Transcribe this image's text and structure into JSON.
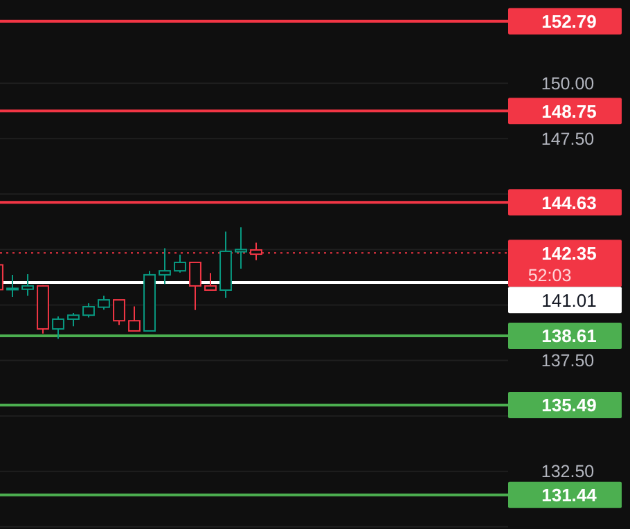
{
  "chart_data": {
    "type": "candlestick",
    "relative": false,
    "categories": [
      null,
      null,
      null,
      null,
      null,
      null,
      null,
      null,
      null,
      null,
      null,
      null,
      null,
      null,
      null,
      null,
      null,
      null,
      null,
      null,
      null,
      null,
      null,
      null,
      null,
      null,
      null,
      null,
      null,
      null,
      null,
      null,
      null,
      null
    ],
    "ohlc": [
      [
        141.81,
        141.81,
        140.69,
        140.69
      ],
      [
        140.7,
        141.36,
        140.36,
        140.75
      ],
      [
        140.71,
        141.39,
        140.42,
        140.86
      ],
      [
        140.86,
        140.9,
        138.71,
        138.92
      ],
      [
        138.92,
        139.48,
        138.48,
        139.36
      ],
      [
        139.36,
        139.64,
        139.04,
        139.54
      ],
      [
        139.54,
        140.08,
        139.44,
        139.92
      ],
      [
        139.9,
        140.42,
        139.79,
        140.23
      ],
      [
        140.23,
        140.23,
        139.1,
        139.29
      ],
      [
        139.29,
        139.94,
        138.83,
        138.83
      ],
      [
        138.83,
        141.54,
        138.83,
        141.36
      ],
      [
        141.36,
        142.56,
        140.94,
        141.54
      ],
      [
        141.54,
        142.27,
        141.46,
        141.92
      ],
      [
        141.92,
        141.92,
        139.77,
        140.86
      ],
      [
        140.86,
        141.44,
        140.67,
        140.67
      ],
      [
        140.67,
        143.31,
        140.33,
        142.42
      ],
      [
        142.4,
        143.5,
        141.64,
        142.5
      ],
      [
        142.48,
        142.81,
        142.02,
        142.29
      ],
      null,
      null,
      null,
      null,
      null,
      null,
      null,
      null,
      null,
      null,
      null,
      null,
      null,
      null,
      null,
      null
    ],
    "colors": [
      "#f23645",
      "#089981",
      "#089981",
      "#f23645",
      "#089981",
      "#089981",
      "#089981",
      "#089981",
      "#f23645",
      "#f23645",
      "#089981",
      "#089981",
      "#089981",
      "#f23645",
      "#f23645",
      "#089981",
      "#089981",
      "#f23645",
      null,
      null,
      null,
      null,
      null,
      null,
      null,
      null,
      null,
      null,
      null,
      null,
      null,
      null,
      null,
      null
    ],
    "ylim": [
      129.9,
      153.75
    ],
    "yticks": [
      {
        "value": 130,
        "label": null
      },
      {
        "value": 132.5,
        "label": "132.50"
      },
      {
        "value": 135,
        "label": null
      },
      {
        "value": 137.5,
        "label": "137.50"
      },
      {
        "value": 140,
        "label": null
      },
      {
        "value": 142.5,
        "label": null
      },
      {
        "value": 145,
        "label": null
      },
      {
        "value": 147.5,
        "label": "147.50"
      },
      {
        "value": 150,
        "label": "150.00"
      }
    ],
    "grid": "y",
    "ref_lines": [
      {
        "axis": "y",
        "value": 152.79,
        "label": "152.79",
        "color": "#f23645",
        "line_style": "solid"
      },
      {
        "axis": "y",
        "value": 148.75,
        "label": "148.75",
        "color": "#f23645",
        "line_style": "solid"
      },
      {
        "axis": "y",
        "value": 144.63,
        "label": "144.63",
        "color": "#f23645",
        "line_style": "solid"
      },
      {
        "axis": "y",
        "value": 142.35,
        "label": "142.35",
        "color": "#f23645",
        "line_style": "dotted"
      },
      {
        "axis": "y",
        "value": 141.01,
        "label": "141.01",
        "color": "#ffffff",
        "line_style": "solid"
      },
      {
        "axis": "y",
        "value": 138.61,
        "label": "138.61",
        "color": "#4caf50",
        "line_style": "solid"
      },
      {
        "axis": "y",
        "value": 135.49,
        "label": "135.49",
        "color": "#4caf50",
        "line_style": "solid"
      },
      {
        "axis": "y",
        "value": 131.44,
        "label": "131.44",
        "color": "#4caf50",
        "line_style": "solid"
      }
    ],
    "annotations": [
      "52:03"
    ]
  }
}
